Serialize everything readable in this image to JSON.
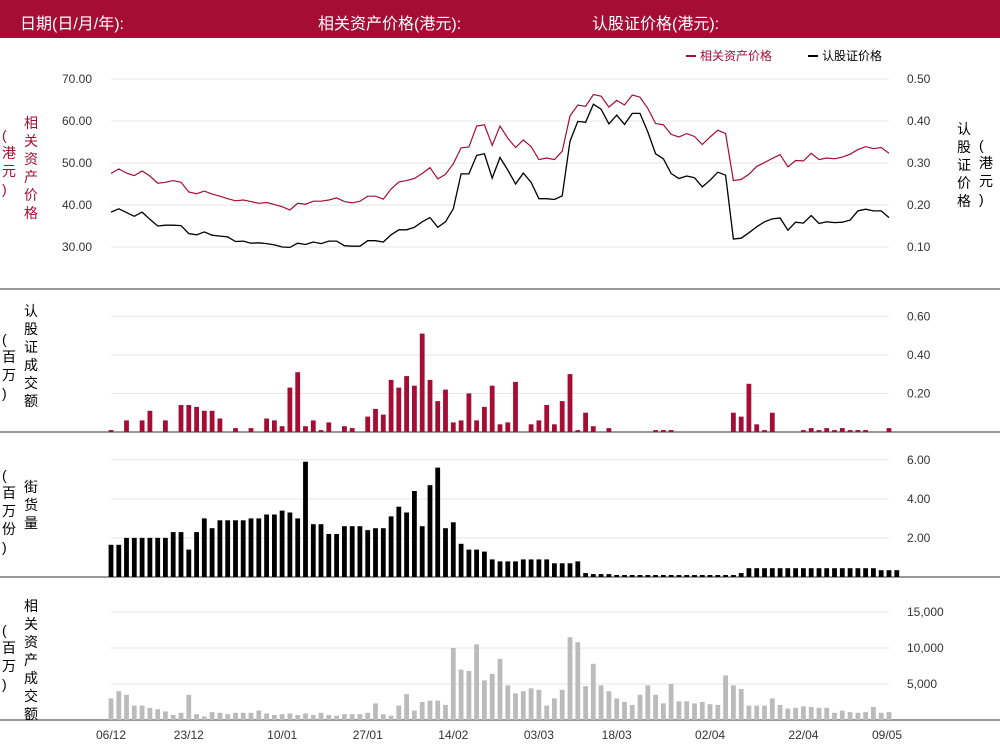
{
  "header": {
    "date_label": "日期(日/月/年):",
    "underlying_label": "相关资产价格(港元):",
    "warrant_label": "认股证价格(港元):"
  },
  "colors": {
    "brand": "#a50d35",
    "warrant": "#000000",
    "turnover_underlying": "#bbbbbb"
  },
  "chart_data": [
    {
      "type": "line",
      "legend": [
        "相关资产价格",
        "认股证价格"
      ],
      "legend_position": "top-right",
      "left_axis_label": [
        "相",
        "关",
        "资",
        "产",
        "价",
        "格"
      ],
      "left_unit_label": [
        "(",
        "港",
        "元",
        ")"
      ],
      "right_axis_label": [
        "认",
        "股",
        "证",
        "价",
        "格"
      ],
      "right_unit_label": [
        "(",
        "港",
        "元",
        ")"
      ],
      "left_ticks": [
        "70.00",
        "60.00",
        "50.00",
        "40.00",
        "30.00"
      ],
      "right_ticks": [
        "0.50",
        "0.40",
        "0.30",
        "0.20",
        "0.10"
      ],
      "left_range": [
        30,
        70
      ],
      "right_range": [
        0.1,
        0.5
      ],
      "series": [
        {
          "name": "相关资产价格",
          "values": [
            47.5,
            48.6,
            47.6,
            47.0,
            48.1,
            46.9,
            45.2,
            45.4,
            45.8,
            45.4,
            43.1,
            42.7,
            43.3,
            42.6,
            42.1,
            41.5,
            41.0,
            41.2,
            40.8,
            40.4,
            40.6,
            40.1,
            39.6,
            38.8,
            40.4,
            40.2,
            40.9,
            40.9,
            41.2,
            41.7,
            40.8,
            40.5,
            40.9,
            42.1,
            42.1,
            41.4,
            43.8,
            45.5,
            45.8,
            46.3,
            47.5,
            48.9,
            46.2,
            47.3,
            49.8,
            53.6,
            53.8,
            58.8,
            59.1,
            54.2,
            58.8,
            55.9,
            53.7,
            55.5,
            53.9,
            50.8,
            51.2,
            50.8,
            52.8,
            61.2,
            63.8,
            63.5,
            66.3,
            65.9,
            63.3,
            64.9,
            63.8,
            66.2,
            65.7,
            63.0,
            59.4,
            59.1,
            56.8,
            56.2,
            57.0,
            56.3,
            54.4,
            56.2,
            57.8,
            57.0,
            45.8,
            46.1,
            47.3,
            49.2,
            50.1,
            51.1,
            52.0,
            49.1,
            50.6,
            50.5,
            52.3,
            50.8,
            51.2,
            51.0,
            51.4,
            52.1,
            53.2,
            53.9,
            53.4,
            53.7,
            52.3
          ]
        },
        {
          "name": "认股证价格",
          "values": [
            0.183,
            0.191,
            0.182,
            0.173,
            0.183,
            0.166,
            0.15,
            0.152,
            0.152,
            0.151,
            0.132,
            0.129,
            0.136,
            0.128,
            0.126,
            0.124,
            0.113,
            0.114,
            0.109,
            0.11,
            0.108,
            0.105,
            0.1,
            0.099,
            0.109,
            0.106,
            0.112,
            0.108,
            0.114,
            0.114,
            0.103,
            0.102,
            0.102,
            0.115,
            0.115,
            0.112,
            0.129,
            0.141,
            0.141,
            0.147,
            0.16,
            0.17,
            0.147,
            0.16,
            0.191,
            0.274,
            0.274,
            0.318,
            0.322,
            0.264,
            0.313,
            0.283,
            0.25,
            0.276,
            0.254,
            0.215,
            0.215,
            0.213,
            0.222,
            0.352,
            0.399,
            0.397,
            0.44,
            0.428,
            0.393,
            0.414,
            0.392,
            0.418,
            0.418,
            0.374,
            0.322,
            0.31,
            0.275,
            0.263,
            0.269,
            0.265,
            0.243,
            0.259,
            0.278,
            0.271,
            0.119,
            0.121,
            0.134,
            0.148,
            0.16,
            0.167,
            0.169,
            0.14,
            0.159,
            0.157,
            0.175,
            0.156,
            0.16,
            0.158,
            0.159,
            0.164,
            0.186,
            0.19,
            0.186,
            0.186,
            0.17
          ]
        }
      ]
    },
    {
      "type": "bar",
      "axis_label": [
        "认",
        "股",
        "证",
        "成",
        "交",
        "额"
      ],
      "unit_label": [
        "(",
        "百",
        "万",
        ")"
      ],
      "right_ticks": [
        "0.60",
        "0.40",
        "0.20"
      ],
      "range": [
        0,
        0.7
      ],
      "values": [
        0.01,
        0,
        0.06,
        0,
        0.06,
        0.11,
        0,
        0.06,
        0,
        0.14,
        0.14,
        0.13,
        0.11,
        0.11,
        0.07,
        0,
        0.02,
        0,
        0.02,
        0,
        0.07,
        0.06,
        0.03,
        0.23,
        0.31,
        0.03,
        0.06,
        0.01,
        0.05,
        0,
        0.03,
        0.02,
        0,
        0.08,
        0.12,
        0.09,
        0.27,
        0.23,
        0.29,
        0.24,
        0.51,
        0.27,
        0.16,
        0.22,
        0.05,
        0.06,
        0.2,
        0.06,
        0.13,
        0.24,
        0.04,
        0.05,
        0.26,
        0,
        0.04,
        0.06,
        0.14,
        0.04,
        0.16,
        0.3,
        0.01,
        0.1,
        0.03,
        0,
        0.02,
        0,
        0,
        0,
        0,
        0,
        0.01,
        0.01,
        0.01,
        0,
        0,
        0,
        0,
        0,
        0,
        0,
        0.1,
        0.08,
        0.25,
        0.04,
        0.01,
        0.1,
        0,
        0,
        0,
        0.01,
        0.02,
        0.01,
        0.02,
        0.01,
        0.02,
        0.01,
        0.01,
        0.01,
        0,
        0,
        0.02
      ],
      "color": "#a50d35"
    },
    {
      "type": "bar",
      "axis_label": [
        "街",
        "货",
        "量"
      ],
      "unit_label": [
        "(",
        "百",
        "万",
        "份",
        ")"
      ],
      "right_ticks": [
        "6.00",
        "4.00",
        "2.00"
      ],
      "range": [
        0,
        6.5
      ],
      "values": [
        1.65,
        1.65,
        2.0,
        2.0,
        2.0,
        2.0,
        2.0,
        2.0,
        2.3,
        2.3,
        1.4,
        2.3,
        3.0,
        2.5,
        2.9,
        2.9,
        2.9,
        2.9,
        3.0,
        3.0,
        3.2,
        3.2,
        3.4,
        3.3,
        3.0,
        5.9,
        2.7,
        2.7,
        2.2,
        2.2,
        2.6,
        2.6,
        2.6,
        2.4,
        2.5,
        2.5,
        3.1,
        3.6,
        3.3,
        4.4,
        2.6,
        4.7,
        5.6,
        2.5,
        2.8,
        1.7,
        1.4,
        1.4,
        1.3,
        0.9,
        0.8,
        0.8,
        0.8,
        0.9,
        0.9,
        0.9,
        0.9,
        0.7,
        0.7,
        0.7,
        0.8,
        0.2,
        0.15,
        0.15,
        0.15,
        0.1,
        0.1,
        0.1,
        0.1,
        0.1,
        0.1,
        0.1,
        0.1,
        0.1,
        0.1,
        0.1,
        0.1,
        0.1,
        0.1,
        0.1,
        0.1,
        0.2,
        0.45,
        0.45,
        0.45,
        0.45,
        0.45,
        0.45,
        0.45,
        0.45,
        0.45,
        0.45,
        0.45,
        0.45,
        0.45,
        0.45,
        0.45,
        0.45,
        0.45,
        0.35,
        0.35,
        0.35
      ],
      "color": "#000000"
    },
    {
      "type": "bar",
      "axis_label": [
        "相",
        "关",
        "资",
        "产",
        "成",
        "交",
        "额"
      ],
      "unit_label": [
        "(",
        "百",
        "万",
        ")"
      ],
      "right_ticks": [
        "15,000",
        "10,000",
        "5,000"
      ],
      "range": [
        0,
        17500
      ],
      "values": [
        3000,
        4000,
        3500,
        2000,
        2000,
        1700,
        1500,
        1200,
        700,
        1000,
        3500,
        800,
        500,
        1100,
        1000,
        800,
        1000,
        1000,
        1000,
        1300,
        900,
        700,
        800,
        900,
        700,
        900,
        700,
        1000,
        700,
        600,
        800,
        800,
        800,
        1000,
        2300,
        800,
        600,
        2000,
        3600,
        1300,
        2500,
        2700,
        2700,
        2100,
        10000,
        7000,
        6800,
        10500,
        5500,
        6400,
        8500,
        4800,
        3700,
        4000,
        4400,
        4200,
        2000,
        3000,
        4200,
        11500,
        10800,
        4700,
        7800,
        4800,
        4000,
        3000,
        2500,
        2100,
        3500,
        4800,
        3500,
        2300,
        5000,
        2600,
        2600,
        2300,
        2500,
        2200,
        2100,
        6200,
        4800,
        4300,
        2000,
        2000,
        2000,
        3000,
        2100,
        1600,
        1700,
        1900,
        1800,
        1700,
        1700,
        1000,
        1300,
        1100,
        1000,
        1100,
        1800,
        1000,
        1100
      ],
      "color": "#bbbbbb"
    }
  ],
  "x_axis": {
    "labels": [
      "06/12",
      "23/12",
      "10/01",
      "27/01",
      "14/02",
      "03/03",
      "18/03",
      "02/04",
      "22/04",
      "09/05"
    ]
  }
}
